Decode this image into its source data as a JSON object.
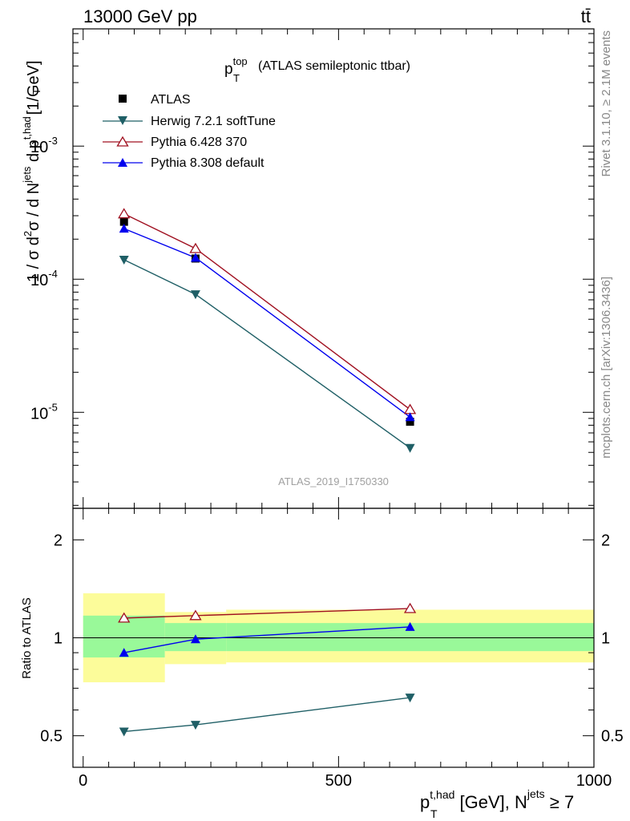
{
  "header": {
    "energy": "13000 GeV pp",
    "process": "tt̄"
  },
  "side_labels": {
    "rivet": "Rivet 3.1.10, ≥ 2.1M events",
    "mcplots": "mcplots.cern.ch [arXiv:1306.3436]"
  },
  "chart_data": [
    {
      "type": "scatter",
      "title_main": "p",
      "title_sup": "top",
      "title_sub": "T",
      "title_rest": "(ATLAS semileptonic ttbar)",
      "watermark": "ATLAS_2019_I1750330",
      "ylabel": {
        "pre": "1 / σ d",
        "sup2": "2",
        "mid": "σ /  d N",
        "jets": "jets",
        "dp": " d p",
        "had": "t,had",
        "T": "T",
        "unit": "[1/GeV]"
      },
      "yscale": "log",
      "xlim": [
        -20,
        1000
      ],
      "ylim": [
        1.9e-06,
        0.0076
      ],
      "y_ticks": [
        {
          "value": 0.001,
          "base": "10",
          "exp": "-3"
        },
        {
          "value": 0.0001,
          "base": "10",
          "exp": "-4"
        },
        {
          "value": 1e-05,
          "base": "10",
          "exp": "-5"
        }
      ],
      "legend_position": "top-left",
      "series": [
        {
          "name": "ATLAS",
          "marker": "square",
          "color": "#000000",
          "x": [
            80,
            220,
            640
          ],
          "y": [
            0.00027,
            0.000143,
            8.5e-06
          ]
        },
        {
          "name": "Herwig 7.2.1 softTune",
          "marker": "triangle-down",
          "color": "#1f5f66",
          "x": [
            80,
            220,
            640
          ],
          "y": [
            0.00014,
            7.7e-05,
            5.4e-06
          ]
        },
        {
          "name": "Pythia 6.428 370",
          "marker": "triangle-up-open",
          "color": "#a01020",
          "x": [
            80,
            220,
            640
          ],
          "y": [
            0.00031,
            0.00017,
            1.05e-05
          ]
        },
        {
          "name": "Pythia 8.308 default",
          "marker": "triangle-up",
          "color": "#0000ee",
          "x": [
            80,
            220,
            640
          ],
          "y": [
            0.00024,
            0.000145,
            9.2e-06
          ]
        }
      ]
    },
    {
      "type": "scatter",
      "ylabel": "Ratio to ATLAS",
      "yscale": "log",
      "xlabel": {
        "p": "p",
        "sup": "t,had",
        "sub": "T",
        "rest": " [GeV], N",
        "jets": "jets",
        "ge": " ≥ 7"
      },
      "xlim": [
        -20,
        1000
      ],
      "ylim": [
        0.4,
        2.5
      ],
      "x_ticks": [
        0,
        500,
        1000
      ],
      "y_ticks": [
        0.5,
        1,
        2
      ],
      "reference": 1,
      "bands": [
        {
          "x0": 0,
          "x1": 160,
          "inner": [
            0.87,
            1.17
          ],
          "outer": [
            0.73,
            1.37
          ]
        },
        {
          "x0": 160,
          "x1": 280,
          "inner": [
            0.91,
            1.11
          ],
          "outer": [
            0.83,
            1.2
          ]
        },
        {
          "x0": 280,
          "x1": 1000,
          "inner": [
            0.91,
            1.11
          ],
          "outer": [
            0.84,
            1.22
          ]
        }
      ],
      "band_colors": {
        "inner": "#99f999",
        "outer": "#fcfc9a"
      },
      "series": [
        {
          "name": "Herwig 7.2.1 softTune",
          "marker": "triangle-down",
          "color": "#1f5f66",
          "x": [
            80,
            220,
            640
          ],
          "y": [
            0.515,
            0.54,
            0.655
          ]
        },
        {
          "name": "Pythia 6.428 370",
          "marker": "triangle-up-open",
          "color": "#a01020",
          "x": [
            80,
            220,
            640
          ],
          "y": [
            1.15,
            1.17,
            1.23
          ]
        },
        {
          "name": "Pythia 8.308 default",
          "marker": "triangle-up",
          "color": "#0000ee",
          "x": [
            80,
            220,
            640
          ],
          "y": [
            0.9,
            0.99,
            1.08
          ]
        }
      ]
    }
  ]
}
